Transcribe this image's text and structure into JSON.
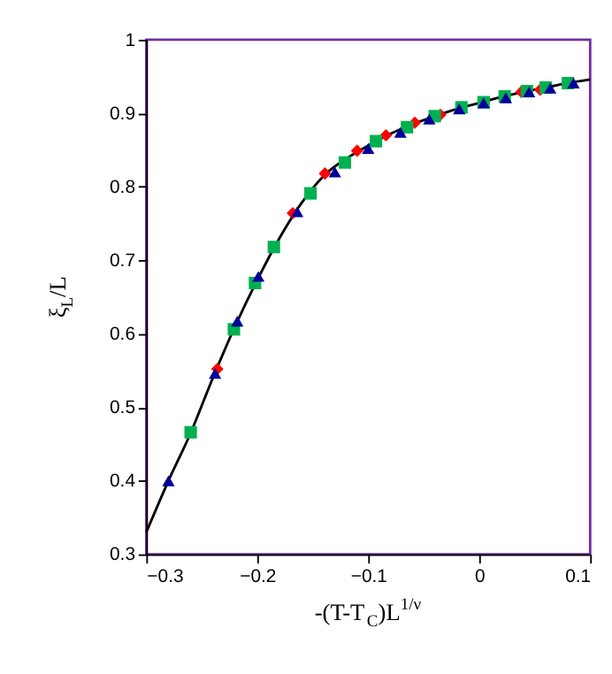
{
  "chart_data": {
    "type": "scatter",
    "xlabel": "-(T-T$_{C}$)L$^{1/ν}$",
    "ylabel": "ξ$_{L}$/L",
    "xlim": [
      -0.3,
      0.1
    ],
    "xticks": [
      -0.3,
      -0.2,
      -0.1,
      0,
      0.1
    ],
    "ylim": [
      0.3,
      1
    ],
    "yticks": [
      0.3,
      0.4,
      0.5,
      0.6,
      0.7,
      0.8,
      0.9,
      1
    ],
    "grid": false,
    "legend": false,
    "series": [
      {
        "type": "line",
        "color": "#000000",
        "marker": "none",
        "line_style": "solid",
        "x": [
          -0.3,
          -0.28,
          -0.26,
          -0.24,
          -0.22,
          -0.2,
          -0.18,
          -0.16,
          -0.14,
          -0.12,
          -0.1,
          -0.08,
          -0.06,
          -0.04,
          -0.02,
          0,
          0.02,
          0.04,
          0.06,
          0.08,
          0.1
        ],
        "values": [
          0.33,
          0.4,
          0.465,
          0.54,
          0.61,
          0.673,
          0.73,
          0.778,
          0.815,
          0.838,
          0.856,
          0.872,
          0.885,
          0.896,
          0.906,
          0.914,
          0.922,
          0.929,
          0.935,
          0.941,
          0.946
        ]
      },
      {
        "type": "scatter",
        "color": "#ff0000",
        "marker": "diamond",
        "x": [
          -0.236,
          -0.168,
          -0.139,
          -0.11,
          -0.084,
          -0.058,
          -0.035,
          0.038,
          0.055
        ],
        "values": [
          0.552,
          0.764,
          0.818,
          0.849,
          0.87,
          0.887,
          0.898,
          0.929,
          0.932
        ]
      },
      {
        "type": "scatter",
        "color": "#00b050",
        "marker": "square",
        "x": [
          -0.26,
          -0.221,
          -0.202,
          -0.185,
          -0.152,
          -0.121,
          -0.093,
          -0.065,
          -0.04,
          -0.016,
          0.004,
          0.023,
          0.043,
          0.06,
          0.08
        ],
        "values": [
          0.466,
          0.606,
          0.669,
          0.718,
          0.791,
          0.833,
          0.862,
          0.881,
          0.896,
          0.908,
          0.915,
          0.923,
          0.93,
          0.935,
          0.941
        ]
      },
      {
        "type": "scatter",
        "color": "#000099",
        "marker": "triangle",
        "x": [
          -0.28,
          -0.238,
          -0.218,
          -0.199,
          -0.164,
          -0.13,
          -0.1,
          -0.071,
          -0.045,
          -0.018,
          0.004,
          0.024,
          0.045,
          0.064,
          0.085
        ],
        "values": [
          0.4,
          0.546,
          0.617,
          0.678,
          0.766,
          0.82,
          0.852,
          0.874,
          0.892,
          0.906,
          0.914,
          0.921,
          0.929,
          0.934,
          0.941
        ]
      }
    ]
  }
}
